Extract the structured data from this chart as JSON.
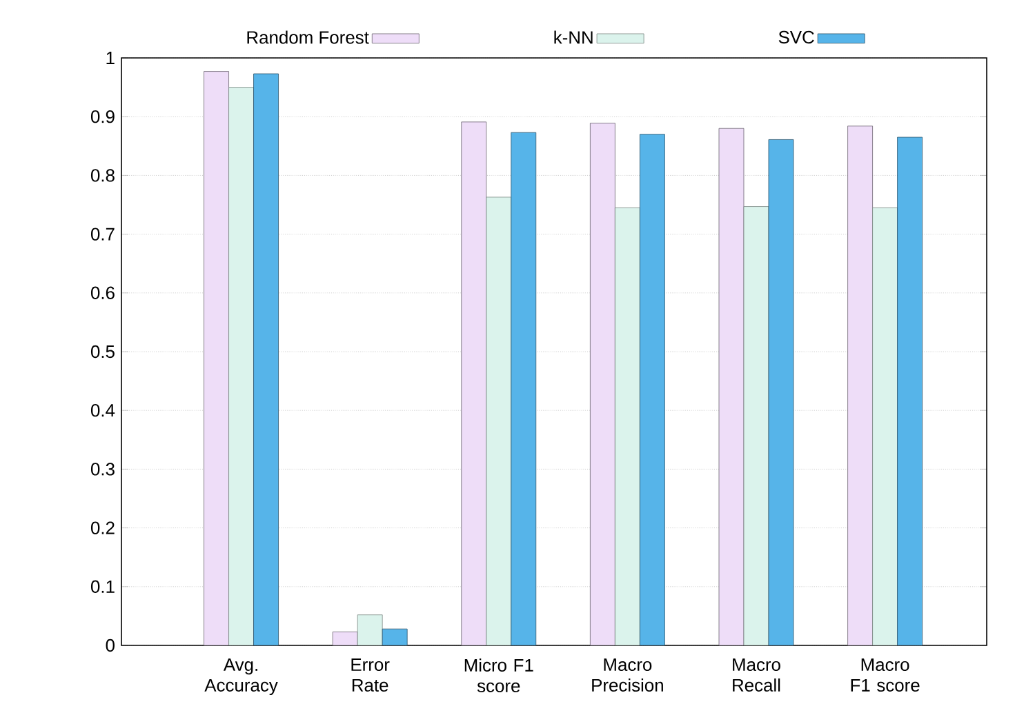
{
  "chart_data": {
    "type": "bar",
    "categories": [
      "Avg. Accuracy",
      "Error Rate",
      "Micro F1 score",
      "Macro Precision",
      "Macro Recall",
      "Macro F1 score"
    ],
    "series": [
      {
        "name": "Random Forest",
        "color": "#eeddf8",
        "values": [
          0.977,
          0.023,
          0.891,
          0.889,
          0.88,
          0.884
        ]
      },
      {
        "name": "k-NN",
        "color": "#dbf3ec",
        "values": [
          0.95,
          0.052,
          0.763,
          0.745,
          0.747,
          0.745
        ]
      },
      {
        "name": "SVC",
        "color": "#56b4e9",
        "values": [
          0.973,
          0.028,
          0.873,
          0.87,
          0.861,
          0.865
        ]
      }
    ],
    "ylim": [
      0,
      1
    ],
    "yticks": [
      0,
      0.1,
      0.2,
      0.3,
      0.4,
      0.5,
      0.6,
      0.7,
      0.8,
      0.9,
      1
    ],
    "grid": "y",
    "legend": "top"
  }
}
